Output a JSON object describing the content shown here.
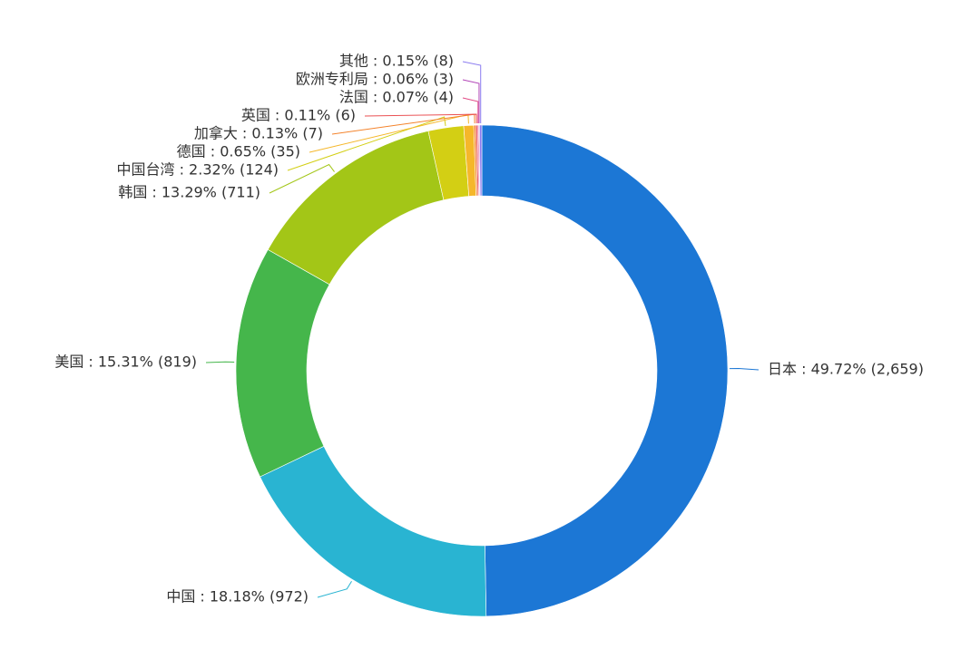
{
  "chart_data": {
    "type": "pie",
    "style": "donut",
    "slices": [
      {
        "name": "日本",
        "percent": 49.72,
        "count": 2659,
        "label": "日本 : 49.72% (2,659)",
        "color": "#1c77d5"
      },
      {
        "name": "中国",
        "percent": 18.18,
        "count": 972,
        "label": "中国 : 18.18% (972)",
        "color": "#29b4d2"
      },
      {
        "name": "美国",
        "percent": 15.31,
        "count": 819,
        "label": "美国 : 15.31% (819)",
        "color": "#45b64b"
      },
      {
        "name": "韩国",
        "percent": 13.29,
        "count": 711,
        "label": "韩国 : 13.29% (711)",
        "color": "#a3c617"
      },
      {
        "name": "中国台湾",
        "percent": 2.32,
        "count": 124,
        "label": "中国台湾 : 2.32% (124)",
        "color": "#d3cf14"
      },
      {
        "name": "德国",
        "percent": 0.65,
        "count": 35,
        "label": "德国 : 0.65% (35)",
        "color": "#f5b72a"
      },
      {
        "name": "加拿大",
        "percent": 0.13,
        "count": 7,
        "label": "加拿大 : 0.13% (7)",
        "color": "#f4832b"
      },
      {
        "name": "英国",
        "percent": 0.11,
        "count": 6,
        "label": "英国 : 0.11% (6)",
        "color": "#ea4f52"
      },
      {
        "name": "法国",
        "percent": 0.07,
        "count": 4,
        "label": "法国 : 0.07% (4)",
        "color": "#e24a86"
      },
      {
        "name": "欧洲专利局",
        "percent": 0.06,
        "count": 3,
        "label": "欧洲专利局 : 0.06% (3)",
        "color": "#b246b8"
      },
      {
        "name": "其他",
        "percent": 0.15,
        "count": 8,
        "label": "其他 : 0.15% (8)",
        "color": "#8b7cf0"
      }
    ]
  }
}
